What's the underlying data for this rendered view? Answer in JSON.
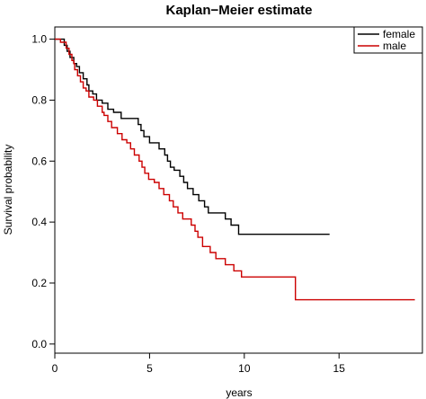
{
  "chart_data": {
    "type": "line",
    "title": "Kaplan−Meier estimate",
    "xlabel": "years",
    "ylabel": "Survival probability",
    "xlim": [
      0,
      19.4
    ],
    "ylim": [
      -0.03,
      1.04
    ],
    "xticks": [
      "0",
      "5",
      "10",
      "15"
    ],
    "xtick_values": [
      0,
      5,
      10,
      15
    ],
    "yticks": [
      "0.0",
      "0.2",
      "0.4",
      "0.6",
      "0.8",
      "1.0"
    ],
    "ytick_values": [
      0.0,
      0.2,
      0.4,
      0.6,
      0.8,
      1.0
    ],
    "grid": false,
    "legend_position": "top-right",
    "step_style": "post",
    "series": [
      {
        "name": "female",
        "color": "#000000",
        "points": [
          [
            0,
            1.0
          ],
          [
            0.5,
            0.98
          ],
          [
            0.65,
            0.96
          ],
          [
            0.8,
            0.94
          ],
          [
            1.0,
            0.92
          ],
          [
            1.15,
            0.91
          ],
          [
            1.3,
            0.89
          ],
          [
            1.5,
            0.87
          ],
          [
            1.7,
            0.85
          ],
          [
            1.8,
            0.83
          ],
          [
            2.0,
            0.82
          ],
          [
            2.2,
            0.8
          ],
          [
            2.5,
            0.79
          ],
          [
            2.8,
            0.77
          ],
          [
            3.1,
            0.76
          ],
          [
            3.5,
            0.74
          ],
          [
            4.4,
            0.72
          ],
          [
            4.55,
            0.7
          ],
          [
            4.7,
            0.68
          ],
          [
            5.0,
            0.66
          ],
          [
            5.5,
            0.64
          ],
          [
            5.8,
            0.62
          ],
          [
            5.95,
            0.6
          ],
          [
            6.1,
            0.58
          ],
          [
            6.3,
            0.57
          ],
          [
            6.6,
            0.55
          ],
          [
            6.8,
            0.53
          ],
          [
            7.0,
            0.51
          ],
          [
            7.3,
            0.49
          ],
          [
            7.6,
            0.47
          ],
          [
            7.9,
            0.45
          ],
          [
            8.1,
            0.43
          ],
          [
            9.0,
            0.41
          ],
          [
            9.3,
            0.39
          ],
          [
            9.7,
            0.36
          ],
          [
            14.5,
            0.36
          ]
        ]
      },
      {
        "name": "male",
        "color": "#cc0000",
        "points": [
          [
            0,
            1.0
          ],
          [
            0.3,
            0.99
          ],
          [
            0.6,
            0.97
          ],
          [
            0.75,
            0.95
          ],
          [
            0.9,
            0.93
          ],
          [
            1.0,
            0.92
          ],
          [
            1.05,
            0.9
          ],
          [
            1.2,
            0.88
          ],
          [
            1.35,
            0.86
          ],
          [
            1.5,
            0.84
          ],
          [
            1.65,
            0.83
          ],
          [
            1.8,
            0.81
          ],
          [
            2.05,
            0.8
          ],
          [
            2.25,
            0.78
          ],
          [
            2.5,
            0.76
          ],
          [
            2.6,
            0.75
          ],
          [
            2.8,
            0.73
          ],
          [
            3.0,
            0.71
          ],
          [
            3.3,
            0.69
          ],
          [
            3.55,
            0.67
          ],
          [
            3.8,
            0.66
          ],
          [
            4.0,
            0.64
          ],
          [
            4.2,
            0.62
          ],
          [
            4.45,
            0.6
          ],
          [
            4.6,
            0.58
          ],
          [
            4.75,
            0.56
          ],
          [
            4.95,
            0.54
          ],
          [
            5.25,
            0.53
          ],
          [
            5.5,
            0.51
          ],
          [
            5.75,
            0.49
          ],
          [
            6.05,
            0.47
          ],
          [
            6.25,
            0.45
          ],
          [
            6.5,
            0.43
          ],
          [
            6.75,
            0.41
          ],
          [
            7.2,
            0.39
          ],
          [
            7.4,
            0.37
          ],
          [
            7.55,
            0.35
          ],
          [
            7.8,
            0.32
          ],
          [
            8.2,
            0.3
          ],
          [
            8.5,
            0.28
          ],
          [
            9.0,
            0.26
          ],
          [
            9.45,
            0.24
          ],
          [
            9.85,
            0.22
          ],
          [
            12.7,
            0.145
          ],
          [
            19.0,
            0.145
          ]
        ]
      }
    ]
  }
}
